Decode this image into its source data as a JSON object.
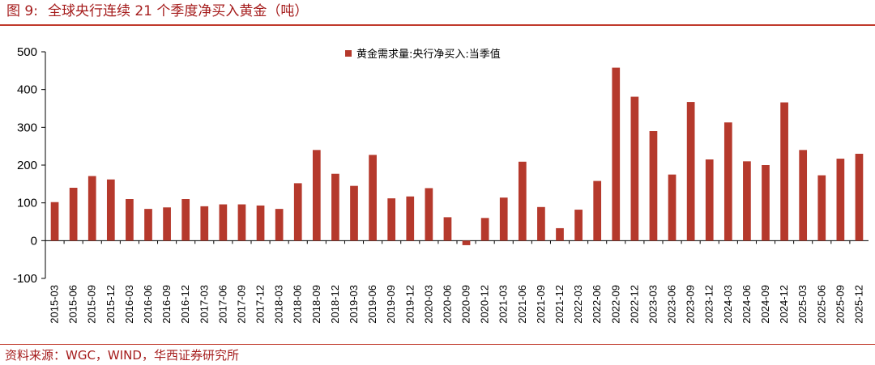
{
  "header": {
    "figure_label": "图 9:",
    "title": "全球央行连续 21 个季度净买入黄金（吨）"
  },
  "footer": {
    "source": "资料来源：WGC，WIND，华西证券研究所"
  },
  "colors": {
    "bar": "#b5392c",
    "accent": "#c0392b",
    "title_text": "#a51c1c"
  },
  "chart_data": {
    "type": "bar",
    "title": "全球央行连续 21 个季度净买入黄金（吨）",
    "xlabel": "",
    "ylabel": "",
    "ylim": [
      -100,
      500
    ],
    "yticks": [
      "500",
      "400",
      "300",
      "200",
      "100",
      "0",
      "-100"
    ],
    "grid": false,
    "legend_position": "top-center",
    "categories": [
      "2015-03",
      "2015-06",
      "2015-09",
      "2015-12",
      "2016-03",
      "2016-06",
      "2016-09",
      "2016-12",
      "2017-03",
      "2017-06",
      "2017-09",
      "2017-12",
      "2018-03",
      "2018-06",
      "2018-09",
      "2018-12",
      "2019-03",
      "2019-06",
      "2019-09",
      "2019-12",
      "2020-03",
      "2020-06",
      "2020-09",
      "2020-12",
      "2021-03",
      "2021-06",
      "2021-09",
      "2021-12",
      "2022-03",
      "2022-06",
      "2022-09",
      "2022-12",
      "2023-03",
      "2023-06",
      "2023-09",
      "2023-12",
      "2024-03",
      "2024-06",
      "2024-09",
      "2024-12",
      "2025-03",
      "2025-06",
      "2025-09",
      "2025-12"
    ],
    "series": [
      {
        "name": "黄金需求量:央行净买入:当季值",
        "values": [
          102,
          140,
          171,
          162,
          110,
          84,
          88,
          110,
          91,
          96,
          96,
          93,
          84,
          152,
          240,
          177,
          145,
          227,
          112,
          117,
          139,
          62,
          -12,
          60,
          114,
          209,
          89,
          33,
          82,
          158,
          458,
          381,
          290,
          175,
          367,
          215,
          313,
          210,
          200,
          366,
          240,
          173,
          217,
          230
        ]
      }
    ]
  }
}
